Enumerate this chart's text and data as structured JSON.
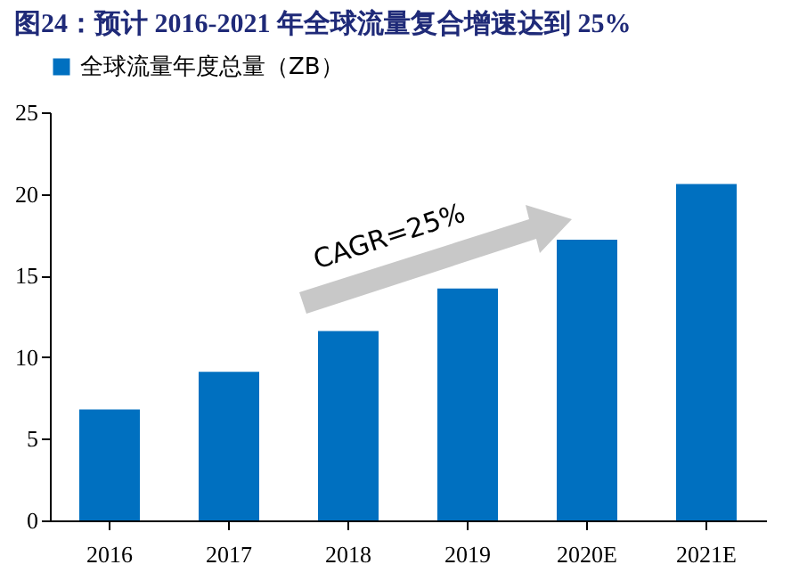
{
  "chart_data": {
    "type": "bar",
    "title": "图24：预计 2016-2021 年全球流量复合增速达到 25%",
    "categories": [
      "2016",
      "2017",
      "2018",
      "2019",
      "2020E",
      "2021E"
    ],
    "series": [
      {
        "name": "全球流量年度总量（ZB）",
        "color": "#0070c0",
        "values": [
          6.8,
          9.1,
          11.6,
          14.2,
          17.2,
          20.6
        ]
      }
    ],
    "ylim": [
      0,
      25
    ],
    "yticks": [
      0,
      5,
      10,
      15,
      20,
      25
    ],
    "grid": false,
    "legend": "top",
    "annotations": [
      "CAGR=25%"
    ]
  }
}
